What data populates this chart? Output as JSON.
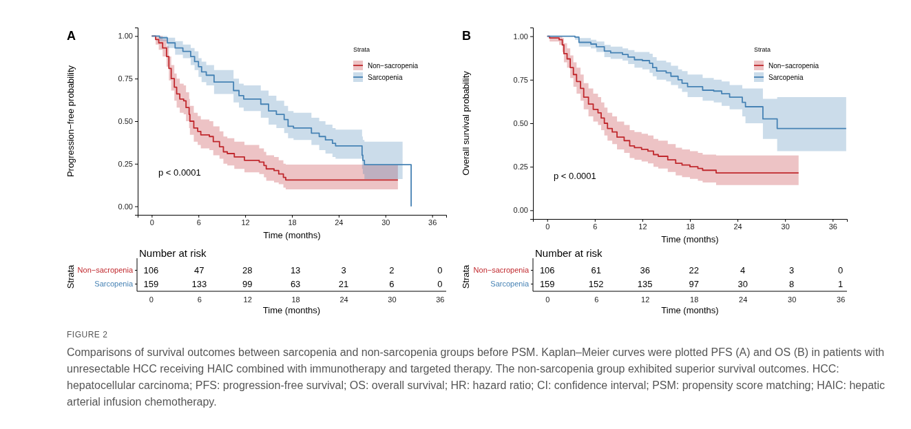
{
  "chart_data": [
    {
      "type": "step",
      "title": "A",
      "xlabel": "Time (months)",
      "ylabel": "Progression−free probability",
      "legend_title": "Strata",
      "legend": "top right",
      "annotations": [
        "p < 0.0001"
      ],
      "xlim": [
        -1.8,
        37.8
      ],
      "xticks": [
        0,
        6,
        12,
        18,
        24,
        30,
        36
      ],
      "ylim": [
        -0.05,
        1.05
      ],
      "yticks": [
        {
          "value": 0,
          "label": "0.00"
        },
        {
          "value": 0.25,
          "label": "0.25"
        },
        {
          "value": 0.5,
          "label": "0.50"
        },
        {
          "value": 0.75,
          "label": "0.75"
        },
        {
          "value": 1,
          "label": "1.00"
        }
      ],
      "series": [
        {
          "name": "Non−sacropenia",
          "color": "#c0282d",
          "x": [
            0,
            0.5,
            0.9,
            1.4,
            1.9,
            2.2,
            2.5,
            2.9,
            3.2,
            3.6,
            4.1,
            4.4,
            4.8,
            4.9,
            5.4,
            5.9,
            6.3,
            7.4,
            7.9,
            8.7,
            9.2,
            9.7,
            10.6,
            11.9,
            13.8,
            14.4,
            14.7,
            15.7,
            16.3,
            16.9,
            17.2,
            31.6
          ],
          "values": [
            1,
            0.98,
            0.96,
            0.93,
            0.88,
            0.81,
            0.75,
            0.7,
            0.66,
            0.63,
            0.62,
            0.58,
            0.54,
            0.5,
            0.46,
            0.44,
            0.42,
            0.41,
            0.38,
            0.35,
            0.32,
            0.31,
            0.29,
            0.27,
            0.26,
            0.24,
            0.22,
            0.21,
            0.19,
            0.17,
            0.155,
            0.155
          ],
          "lower": [
            1,
            0.95,
            0.92,
            0.88,
            0.82,
            0.74,
            0.68,
            0.62,
            0.58,
            0.55,
            0.54,
            0.5,
            0.46,
            0.42,
            0.38,
            0.36,
            0.34,
            0.33,
            0.3,
            0.28,
            0.25,
            0.24,
            0.22,
            0.2,
            0.19,
            0.17,
            0.15,
            0.14,
            0.13,
            0.11,
            0.1,
            0.1
          ],
          "upper": [
            1,
            1,
            1,
            0.98,
            0.94,
            0.88,
            0.83,
            0.78,
            0.75,
            0.72,
            0.71,
            0.67,
            0.63,
            0.59,
            0.55,
            0.53,
            0.51,
            0.5,
            0.47,
            0.44,
            0.41,
            0.4,
            0.38,
            0.36,
            0.34,
            0.32,
            0.3,
            0.29,
            0.27,
            0.25,
            0.245,
            0.245
          ]
        },
        {
          "name": "Sarcopenia",
          "color": "#4682b4",
          "x": [
            0,
            1,
            2,
            3,
            4,
            5,
            5.5,
            6,
            6.4,
            7,
            8,
            10.5,
            11.2,
            11.8,
            14,
            15,
            16,
            17,
            17.5,
            18.2,
            20.5,
            21.5,
            22.3,
            23.2,
            23.6,
            27,
            27.1,
            27.3,
            32.2,
            33.3,
            33.3
          ],
          "values": [
            1,
            0.99,
            0.96,
            0.93,
            0.91,
            0.88,
            0.85,
            0.82,
            0.79,
            0.77,
            0.73,
            0.68,
            0.65,
            0.63,
            0.6,
            0.56,
            0.54,
            0.51,
            0.47,
            0.46,
            0.43,
            0.41,
            0.39,
            0.37,
            0.355,
            0.3,
            0.27,
            0.245,
            0.245,
            0.245,
            0
          ],
          "lower": [
            1,
            0.97,
            0.93,
            0.89,
            0.87,
            0.83,
            0.8,
            0.76,
            0.73,
            0.71,
            0.66,
            0.61,
            0.58,
            0.56,
            0.52,
            0.48,
            0.46,
            0.43,
            0.4,
            0.39,
            0.36,
            0.33,
            0.31,
            0.29,
            0.28,
            0.22,
            0.19,
            0.16,
            0.16,
            null,
            null
          ],
          "upper": [
            1,
            1,
            0.99,
            0.97,
            0.95,
            0.93,
            0.91,
            0.87,
            0.85,
            0.83,
            0.8,
            0.75,
            0.72,
            0.71,
            0.68,
            0.65,
            0.62,
            0.59,
            0.56,
            0.55,
            0.52,
            0.5,
            0.48,
            0.46,
            0.45,
            0.41,
            0.39,
            0.38,
            0.38,
            null,
            null
          ]
        }
      ]
    },
    {
      "type": "step",
      "title": "B",
      "xlabel": "Time (months)",
      "ylabel": "Overall survival probability",
      "legend_title": "Strata",
      "legend": "top right",
      "annotations": [
        "p < 0.0001"
      ],
      "xlim": [
        -1.8,
        37.8
      ],
      "xticks": [
        0,
        6,
        12,
        18,
        24,
        30,
        36
      ],
      "ylim": [
        -0.05,
        1.05
      ],
      "yticks": [
        {
          "value": 0,
          "label": "0.00"
        },
        {
          "value": 0.25,
          "label": "0.25"
        },
        {
          "value": 0.5,
          "label": "0.50"
        },
        {
          "value": 0.75,
          "label": "0.75"
        },
        {
          "value": 1,
          "label": "1.00"
        }
      ],
      "series": [
        {
          "name": "Non−sacropenia",
          "color": "#c0282d",
          "x": [
            0,
            0.3,
            1.5,
            1.9,
            2.1,
            2.5,
            2.9,
            3.3,
            3.7,
            4.2,
            4.6,
            5.2,
            5.8,
            6.4,
            6.8,
            7.2,
            7.6,
            8.2,
            8.8,
            9.7,
            10.4,
            11,
            11.9,
            12.7,
            13.4,
            14,
            15.2,
            16.2,
            17,
            18,
            19,
            19.6,
            21.3,
            31.7
          ],
          "values": [
            1,
            0.99,
            0.98,
            0.95,
            0.9,
            0.87,
            0.82,
            0.78,
            0.74,
            0.7,
            0.65,
            0.61,
            0.58,
            0.56,
            0.53,
            0.5,
            0.47,
            0.45,
            0.42,
            0.4,
            0.37,
            0.36,
            0.35,
            0.34,
            0.32,
            0.31,
            0.29,
            0.27,
            0.26,
            0.25,
            0.24,
            0.23,
            0.215,
            0.215
          ],
          "lower": [
            1,
            0.97,
            0.95,
            0.91,
            0.85,
            0.82,
            0.76,
            0.71,
            0.67,
            0.63,
            0.58,
            0.54,
            0.51,
            0.49,
            0.46,
            0.43,
            0.4,
            0.38,
            0.35,
            0.33,
            0.3,
            0.29,
            0.28,
            0.27,
            0.25,
            0.24,
            0.22,
            0.2,
            0.19,
            0.18,
            0.17,
            0.16,
            0.145,
            0.145
          ],
          "upper": [
            1,
            1,
            1,
            0.99,
            0.96,
            0.93,
            0.89,
            0.85,
            0.82,
            0.78,
            0.73,
            0.7,
            0.67,
            0.65,
            0.62,
            0.59,
            0.56,
            0.54,
            0.51,
            0.49,
            0.46,
            0.45,
            0.44,
            0.43,
            0.41,
            0.4,
            0.38,
            0.36,
            0.35,
            0.34,
            0.33,
            0.32,
            0.315,
            0.315
          ]
        },
        {
          "name": "Sarcopenia",
          "color": "#4682b4",
          "x": [
            0,
            3.5,
            4,
            5.5,
            6.2,
            7.2,
            8,
            9.5,
            10.2,
            11,
            12,
            12.9,
            13.3,
            13.8,
            15,
            15.6,
            16.5,
            17,
            17.7,
            19.6,
            21,
            22,
            23,
            24.6,
            25,
            27.2,
            29,
            37.7
          ],
          "values": [
            1,
            0.995,
            0.965,
            0.955,
            0.94,
            0.915,
            0.905,
            0.895,
            0.88,
            0.865,
            0.86,
            0.845,
            0.82,
            0.8,
            0.79,
            0.77,
            0.75,
            0.73,
            0.71,
            0.69,
            0.685,
            0.67,
            0.65,
            0.62,
            0.595,
            0.525,
            0.47,
            0.47
          ],
          "lower": [
            1,
            0.98,
            0.94,
            0.93,
            0.91,
            0.88,
            0.87,
            0.86,
            0.84,
            0.82,
            0.81,
            0.79,
            0.77,
            0.75,
            0.74,
            0.72,
            0.7,
            0.68,
            0.65,
            0.63,
            0.62,
            0.6,
            0.58,
            0.54,
            0.5,
            0.41,
            0.34,
            0.34
          ],
          "upper": [
            1,
            1,
            0.99,
            0.98,
            0.97,
            0.95,
            0.94,
            0.93,
            0.92,
            0.91,
            0.91,
            0.9,
            0.88,
            0.86,
            0.85,
            0.83,
            0.81,
            0.8,
            0.78,
            0.76,
            0.75,
            0.74,
            0.72,
            0.7,
            0.7,
            0.64,
            0.65,
            0.65
          ]
        }
      ]
    },
    {
      "type": "heatmap",
      "title": "Number at risk",
      "xlabel": "Time (months)",
      "ylabel": "Strata",
      "categories": [
        "0",
        "6",
        "12",
        "18",
        "24",
        "30",
        "36"
      ],
      "y_categories": [
        "Non−sacropenia",
        "Sarcopenia"
      ],
      "data_labels": true,
      "cells": [
        [
          106,
          47,
          28,
          13,
          3,
          2,
          0
        ],
        [
          159,
          133,
          99,
          63,
          21,
          6,
          0
        ]
      ]
    },
    {
      "type": "heatmap",
      "title": "Number at risk",
      "xlabel": "Time (months)",
      "ylabel": "Strata",
      "categories": [
        "0",
        "6",
        "12",
        "18",
        "24",
        "30",
        "36"
      ],
      "y_categories": [
        "Non−sacropenia",
        "Sarcopenia"
      ],
      "data_labels": true,
      "cells": [
        [
          106,
          61,
          36,
          22,
          4,
          3,
          0
        ],
        [
          159,
          152,
          135,
          97,
          30,
          8,
          1
        ]
      ]
    },
    {
      "type": "other",
      "title": "FIGURE 2",
      "annotations": [
        "Comparisons of survival outcomes between sarcopenia and non-sarcopenia groups before PSM. Kaplan–Meier curves were plotted PFS (A) and OS (B) in patients with unresectable HCC receiving HAIC combined with immunotherapy and targeted therapy. The non-sarcopenia group exhibited superior survival outcomes. HCC: hepatocellular carcinoma; PFS: progression-free survival; OS: overall survival; HR: hazard ratio; CI: confidence interval; PSM: propensity score matching; HAIC: hepatic arterial infusion chemotherapy."
      ]
    }
  ]
}
